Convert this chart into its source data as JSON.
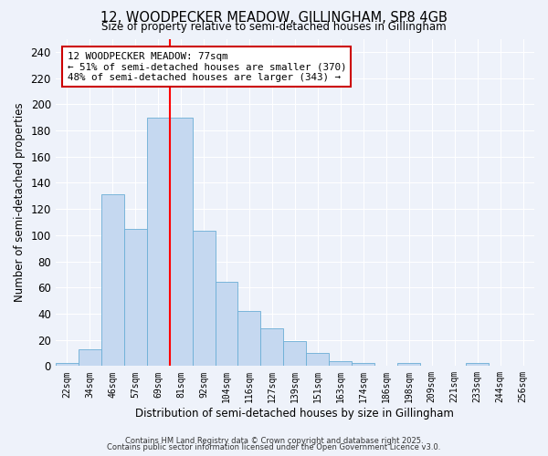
{
  "title": "12, WOODPECKER MEADOW, GILLINGHAM, SP8 4GB",
  "subtitle": "Size of property relative to semi-detached houses in Gillingham",
  "xlabel": "Distribution of semi-detached houses by size in Gillingham",
  "ylabel": "Number of semi-detached properties",
  "bar_labels": [
    "22sqm",
    "34sqm",
    "46sqm",
    "57sqm",
    "69sqm",
    "81sqm",
    "92sqm",
    "104sqm",
    "116sqm",
    "127sqm",
    "139sqm",
    "151sqm",
    "163sqm",
    "174sqm",
    "186sqm",
    "198sqm",
    "209sqm",
    "221sqm",
    "233sqm",
    "244sqm",
    "256sqm"
  ],
  "bar_values": [
    2,
    13,
    131,
    105,
    190,
    190,
    103,
    64,
    42,
    29,
    19,
    10,
    4,
    2,
    0,
    2,
    0,
    0,
    2,
    0,
    0
  ],
  "bar_color": "#c5d8f0",
  "bar_edge_color": "#6baed6",
  "red_line_x": 4.5,
  "annotation_title": "12 WOODPECKER MEADOW: 77sqm",
  "annotation_line1": "← 51% of semi-detached houses are smaller (370)",
  "annotation_line2": "48% of semi-detached houses are larger (343) →",
  "annotation_box_color": "#ffffff",
  "annotation_box_edge_color": "#cc0000",
  "ylim": [
    0,
    250
  ],
  "yticks": [
    0,
    20,
    40,
    60,
    80,
    100,
    120,
    140,
    160,
    180,
    200,
    220,
    240
  ],
  "bg_color": "#eef2fa",
  "grid_color": "#ffffff",
  "footer1": "Contains HM Land Registry data © Crown copyright and database right 2025.",
  "footer2": "Contains public sector information licensed under the Open Government Licence v3.0."
}
